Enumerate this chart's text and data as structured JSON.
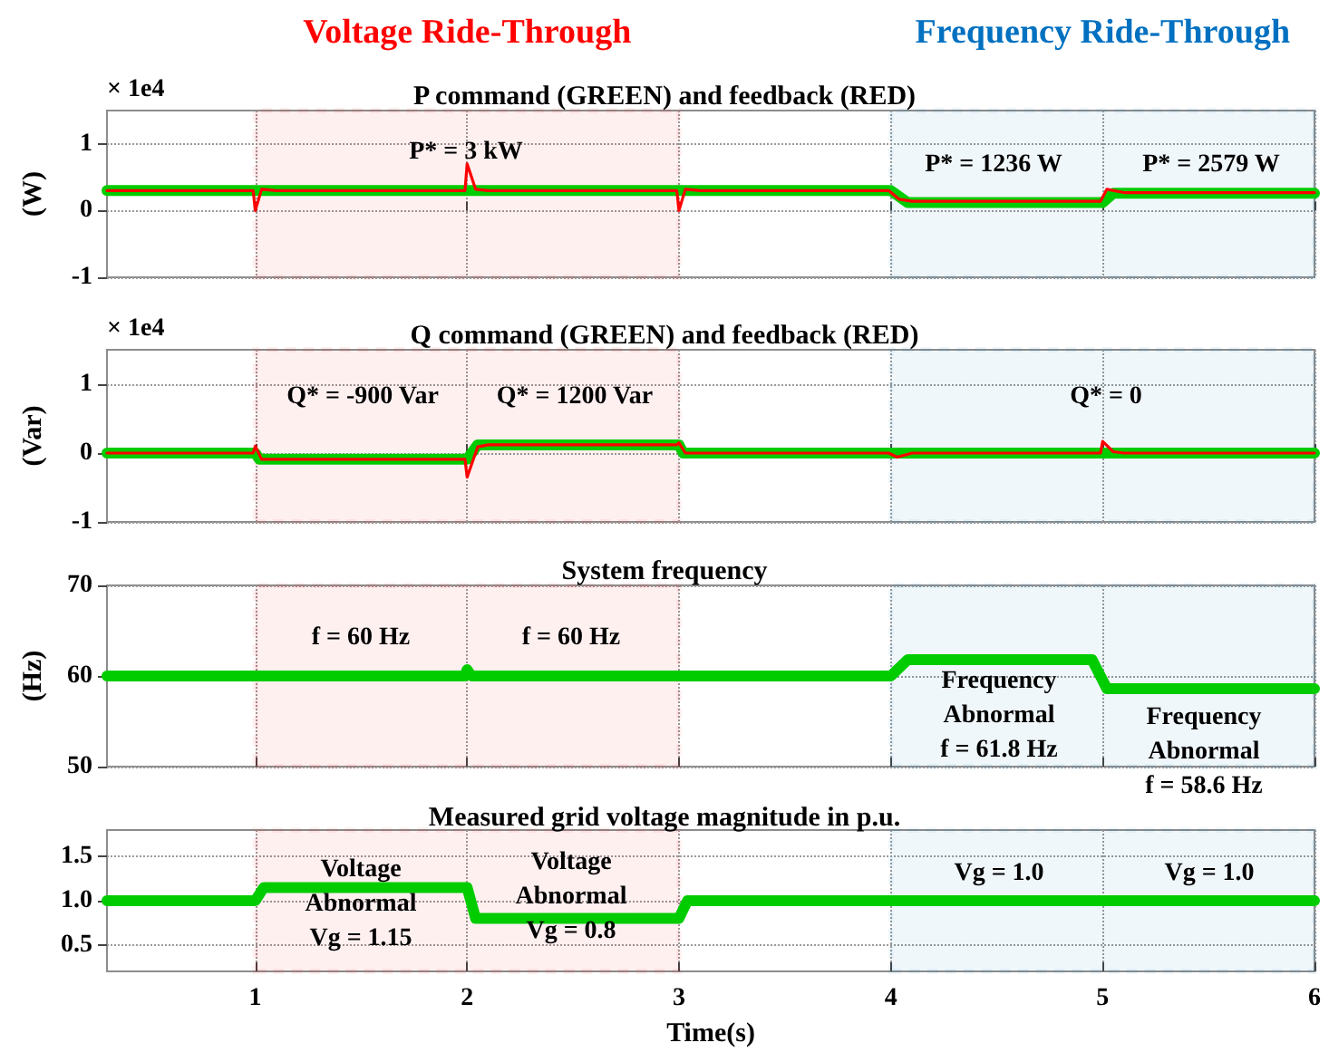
{
  "chart_data": [
    {
      "type": "line",
      "title": "P command (GREEN) and feedback (RED)",
      "ylabel": "(W)",
      "xlim": [
        0.3,
        6
      ],
      "xticks": [
        1,
        2,
        3,
        4,
        5,
        6
      ],
      "ylim": [
        -1,
        1.5
      ],
      "yticks": [
        -1,
        0,
        1
      ],
      "tick_labels": "y",
      "grid": true,
      "series": [
        {
          "color": "#00cc00",
          "x": [
            0.3,
            4,
            4.08,
            5,
            5.05,
            6
          ],
          "values": [
            0.3,
            0.3,
            0.12,
            0.12,
            0.26,
            0.26
          ]
        },
        {
          "color": "#ff0000",
          "x": [
            0.3,
            0.99,
            1.0,
            1.03,
            1.1,
            1.99,
            2.0,
            2.04,
            2.1,
            2.99,
            3.0,
            3.03,
            3.1,
            3.99,
            4.04,
            4.1,
            4.99,
            5.02,
            5.1,
            6
          ],
          "values": [
            0.3,
            0.3,
            0,
            0.32,
            0.3,
            0.3,
            0.7,
            0.32,
            0.3,
            0.3,
            0,
            0.32,
            0.3,
            0.3,
            0.17,
            0.14,
            0.14,
            0.32,
            0.27,
            0.27
          ]
        }
      ],
      "bands": [
        {
          "axis": "x",
          "from": 1,
          "to": 3,
          "label": "Voltage Ride-Through",
          "color": "#ff0000"
        },
        {
          "axis": "x",
          "from": 4,
          "to": 6,
          "label": "Frequency Ride-Through",
          "color": "#0070c0"
        }
      ],
      "annotations": [
        "× 1e4",
        "P* = 3 kW",
        "P* = 1236 W",
        "P* = 2579 W"
      ]
    },
    {
      "type": "line",
      "title": "Q command (GREEN) and feedback (RED)",
      "ylabel": "(Var)",
      "xlim": [
        0.3,
        6
      ],
      "xticks": [
        1,
        2,
        3,
        4,
        5,
        6
      ],
      "ylim": [
        -1,
        1.5
      ],
      "yticks": [
        -1,
        0,
        1
      ],
      "tick_labels": "y",
      "grid": true,
      "series": [
        {
          "color": "#00cc00",
          "x": [
            0.3,
            1,
            1.02,
            2,
            2.05,
            3,
            3.02,
            6
          ],
          "values": [
            0,
            0,
            -0.09,
            -0.09,
            0.12,
            0.12,
            0,
            0
          ]
        },
        {
          "color": "#ff0000",
          "x": [
            0.3,
            0.99,
            1.0,
            1.03,
            1.99,
            2.0,
            2.05,
            2.1,
            2.99,
            3.0,
            3.03,
            3.99,
            4.03,
            4.1,
            4.99,
            5.0,
            5.05,
            5.1,
            6
          ],
          "values": [
            0,
            0,
            0.1,
            -0.09,
            -0.09,
            -0.35,
            0.09,
            0.12,
            0.12,
            0.15,
            0,
            0,
            -0.06,
            0,
            0,
            0.17,
            0.02,
            0,
            0
          ]
        }
      ],
      "bands": [
        {
          "axis": "x",
          "from": 1,
          "to": 3,
          "color": "#ff0000"
        },
        {
          "axis": "x",
          "from": 4,
          "to": 6,
          "color": "#0070c0"
        }
      ],
      "annotations": [
        "× 1e4",
        "Q* = -900 Var",
        "Q* = 1200 Var",
        "Q* = 0"
      ]
    },
    {
      "type": "line",
      "title": "System frequency",
      "ylabel": "(Hz)",
      "xlim": [
        0.3,
        6
      ],
      "xticks": [
        1,
        2,
        3,
        4,
        5,
        6
      ],
      "ylim": [
        50,
        70
      ],
      "yticks": [
        50,
        60,
        70
      ],
      "tick_labels": "y",
      "grid": true,
      "series": [
        {
          "color": "#00cc00",
          "x": [
            0.3,
            1.99,
            2.0,
            2.02,
            4,
            4.08,
            4.95,
            5.02,
            6
          ],
          "values": [
            60,
            60,
            60.7,
            60,
            60,
            61.8,
            61.8,
            58.6,
            58.6
          ]
        }
      ],
      "bands": [
        {
          "axis": "x",
          "from": 1,
          "to": 3,
          "color": "#ff0000"
        },
        {
          "axis": "x",
          "from": 4,
          "to": 6,
          "color": "#0070c0"
        }
      ],
      "annotations": [
        "f = 60 Hz",
        "f = 60 Hz",
        "Frequency\nAbnormal\nf = 61.8 Hz",
        "Frequency\nAbnormal\nf = 58.6 Hz"
      ]
    },
    {
      "type": "line",
      "title": "Measured grid voltage magnitude in p.u.",
      "xlabel": "Time(s)",
      "xlim": [
        0.3,
        6
      ],
      "xticks": [
        1,
        2,
        3,
        4,
        5,
        6
      ],
      "ylim": [
        0.2,
        1.8
      ],
      "yticks": [
        0.5,
        {
          "value": 1,
          "label": "1.0"
        },
        1.5
      ],
      "grid": true,
      "series": [
        {
          "color": "#00cc00",
          "x": [
            0.3,
            1,
            1.04,
            2,
            2.04,
            3,
            3.04,
            6
          ],
          "values": [
            1,
            1,
            1.15,
            1.15,
            0.8,
            0.8,
            1,
            1
          ]
        }
      ],
      "bands": [
        {
          "axis": "x",
          "from": 1,
          "to": 3,
          "color": "#ff0000"
        },
        {
          "axis": "x",
          "from": 4,
          "to": 6,
          "color": "#0070c0"
        }
      ],
      "annotations": [
        "Voltage\nAbnormal\nVg = 1.15",
        "Voltage\nAbnormal\nVg = 0.8",
        "Vg = 1.0",
        "Vg = 1.0"
      ]
    }
  ]
}
